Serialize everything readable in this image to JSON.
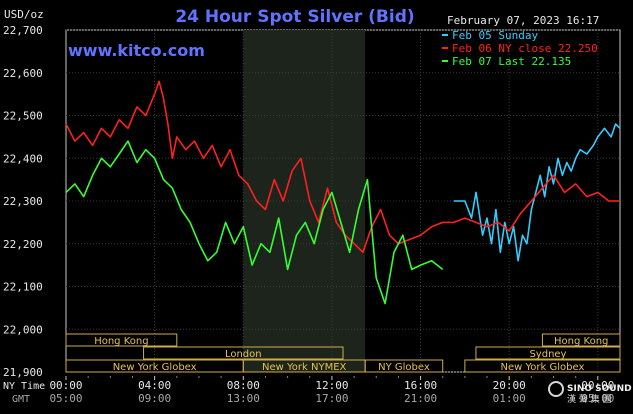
{
  "title": "24 Hour Spot Silver (Bid)",
  "unit": "USD/oz",
  "site": "www.kitco.com",
  "datetime": "February 07, 2023 16:17",
  "legend": [
    {
      "label": "Feb 05 Sunday",
      "color": "#33ccff"
    },
    {
      "label": "Feb 06 NY close 22.250",
      "color": "#ff2020"
    },
    {
      "label": "Feb 07 Last 22.135",
      "color": "#33ff33"
    }
  ],
  "time_axis": {
    "ny_label": "NY Time",
    "gmt_label": "GMT",
    "ny_ticks": [
      "00:00",
      "04:00",
      "08:00",
      "12:00",
      "16:00",
      "20:00",
      "00:00"
    ],
    "gmt_ticks": [
      "05:00",
      "09:00",
      "13:00",
      "17:00",
      "21:00",
      "01:00",
      "05:00"
    ]
  },
  "markets": [
    {
      "label": "Hong Kong",
      "start": 0,
      "end": 5
    },
    {
      "label": "Hong Kong",
      "start": 21.5,
      "end": 25
    },
    {
      "label": "London",
      "start": 3.5,
      "end": 12.5
    },
    {
      "label": "Sydney",
      "start": 18.5,
      "end": 25
    },
    {
      "label": "New York Globex",
      "start": 0,
      "end": 8
    },
    {
      "label": "New York NYMEX",
      "start": 8,
      "end": 13.5
    },
    {
      "label": "NY Globex",
      "start": 13.5,
      "end": 17
    },
    {
      "label": "New York Globex",
      "start": 18,
      "end": 25
    }
  ],
  "logo": {
    "name": "SINO SOUND",
    "chinese": "漢 聲 集 團"
  },
  "chart_data": {
    "type": "line",
    "title": "24 Hour Spot Silver (Bid)",
    "ylabel": "USD/oz",
    "ylim": [
      21.9,
      22.7
    ],
    "yticks": [
      "22,700",
      "22,600",
      "22,500",
      "22,400",
      "22,300",
      "22,200",
      "22,100",
      "22,000",
      "21,900"
    ],
    "x_unit": "hours since 00:00 NY time",
    "xlim": [
      0,
      25
    ],
    "highlight_band": [
      8,
      13.5
    ],
    "series": [
      {
        "name": "Feb 05 Sunday",
        "color": "#33ccff",
        "x": [
          17.5,
          18.0,
          18.3,
          18.5,
          18.8,
          19.0,
          19.2,
          19.4,
          19.6,
          19.8,
          20.0,
          20.2,
          20.4,
          20.6,
          20.8,
          21.0,
          21.2,
          21.4,
          21.6,
          21.8,
          22.0,
          22.2,
          22.4,
          22.6,
          22.8,
          23.0,
          23.2,
          23.5,
          23.8,
          24.0,
          24.3,
          24.6,
          24.8,
          25.0
        ],
        "y": [
          22.3,
          22.3,
          22.26,
          22.32,
          22.22,
          22.26,
          22.2,
          22.28,
          22.18,
          22.25,
          22.2,
          22.24,
          22.16,
          22.22,
          22.2,
          22.28,
          22.32,
          22.36,
          22.31,
          22.38,
          22.34,
          22.4,
          22.36,
          22.39,
          22.37,
          22.4,
          22.42,
          22.41,
          22.43,
          22.45,
          22.47,
          22.45,
          22.48,
          22.47
        ]
      },
      {
        "name": "Feb 06 NY close 22.250",
        "color": "#ff2020",
        "x": [
          0.0,
          0.4,
          0.8,
          1.2,
          1.6,
          2.0,
          2.4,
          2.8,
          3.2,
          3.6,
          4.0,
          4.2,
          4.4,
          4.6,
          4.8,
          5.0,
          5.4,
          5.8,
          6.2,
          6.6,
          7.0,
          7.4,
          7.8,
          8.2,
          8.6,
          9.0,
          9.4,
          9.8,
          10.2,
          10.6,
          11.0,
          11.4,
          11.8,
          12.2,
          12.6,
          13.0,
          13.4,
          13.8,
          14.2,
          14.6,
          15.0,
          15.5,
          16.0,
          16.5,
          17.0,
          17.5,
          18.0,
          18.5,
          19.0,
          19.5,
          20.0,
          20.5,
          21.0,
          21.5,
          22.0,
          22.5,
          23.0,
          23.5,
          24.0,
          24.5,
          25.0
        ],
        "y": [
          22.48,
          22.44,
          22.46,
          22.43,
          22.47,
          22.45,
          22.49,
          22.47,
          22.52,
          22.5,
          22.55,
          22.58,
          22.54,
          22.48,
          22.4,
          22.45,
          22.42,
          22.44,
          22.4,
          22.43,
          22.38,
          22.42,
          22.36,
          22.34,
          22.3,
          22.28,
          22.35,
          22.3,
          22.37,
          22.4,
          22.3,
          22.25,
          22.33,
          22.25,
          22.22,
          22.2,
          22.18,
          22.24,
          22.28,
          22.22,
          22.2,
          22.21,
          22.22,
          22.24,
          22.25,
          22.25,
          22.26,
          22.25,
          22.24,
          22.25,
          22.23,
          22.27,
          22.3,
          22.33,
          22.36,
          22.32,
          22.34,
          22.31,
          22.32,
          22.3,
          22.3
        ]
      },
      {
        "name": "Feb 07 Last 22.135",
        "color": "#33ff33",
        "x": [
          0.0,
          0.4,
          0.8,
          1.2,
          1.6,
          2.0,
          2.4,
          2.8,
          3.2,
          3.6,
          4.0,
          4.4,
          4.8,
          5.2,
          5.6,
          6.0,
          6.4,
          6.8,
          7.2,
          7.6,
          8.0,
          8.4,
          8.8,
          9.2,
          9.6,
          10.0,
          10.4,
          10.8,
          11.2,
          11.6,
          12.0,
          12.4,
          12.8,
          13.2,
          13.6,
          14.0,
          14.4,
          14.8,
          15.2,
          15.6,
          16.0,
          16.5,
          17.0
        ],
        "y": [
          22.32,
          22.34,
          22.31,
          22.36,
          22.4,
          22.38,
          22.41,
          22.44,
          22.39,
          22.42,
          22.4,
          22.35,
          22.33,
          22.28,
          22.25,
          22.2,
          22.16,
          22.18,
          22.25,
          22.2,
          22.24,
          22.15,
          22.2,
          22.18,
          22.26,
          22.14,
          22.22,
          22.25,
          22.2,
          22.28,
          22.32,
          22.25,
          22.18,
          22.28,
          22.35,
          22.12,
          22.06,
          22.18,
          22.22,
          22.14,
          22.15,
          22.16,
          22.14
        ]
      }
    ]
  }
}
